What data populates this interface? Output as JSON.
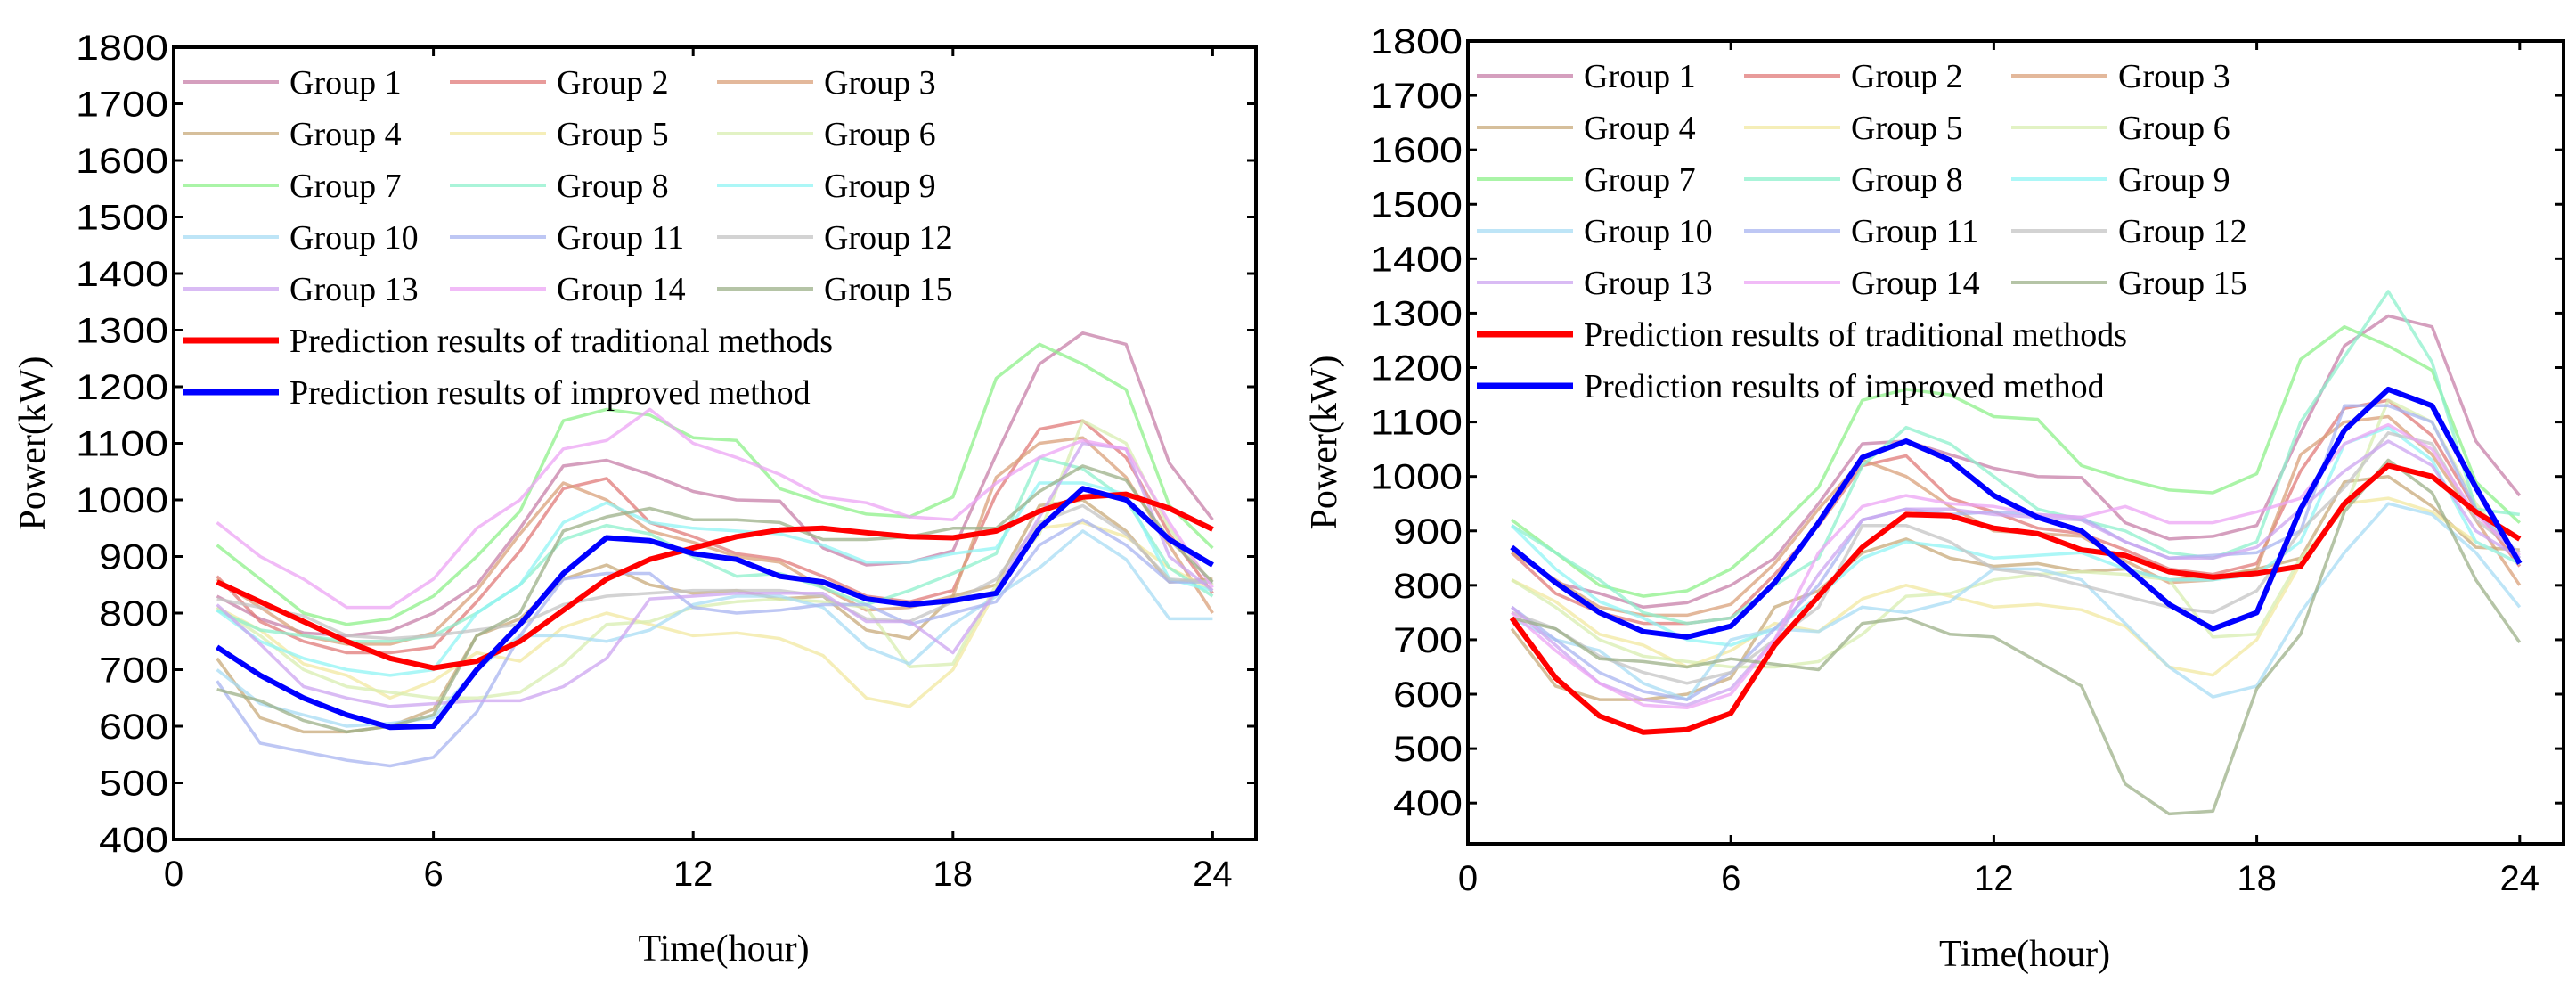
{
  "chart_data": [
    {
      "type": "line",
      "panel": "left",
      "xlabel": "Time(hour)",
      "ylabel": "Power(kW)",
      "xlim": [
        0,
        25
      ],
      "ylim": [
        400,
        1800
      ],
      "xticks": [
        0,
        6,
        12,
        18,
        24
      ],
      "yticks": [
        400,
        500,
        600,
        700,
        800,
        900,
        1000,
        1100,
        1200,
        1300,
        1400,
        1500,
        1600,
        1700,
        1800
      ],
      "grid": false,
      "legend_position": "top-left",
      "x": [
        1,
        2,
        3,
        4,
        5,
        6,
        7,
        8,
        9,
        10,
        11,
        12,
        13,
        14,
        15,
        16,
        17,
        18,
        19,
        20,
        21,
        22,
        23,
        24
      ],
      "series": [
        {
          "name": "Group 1",
          "color": "#c77fa8",
          "values": [
            830,
            790,
            765,
            760,
            768,
            800,
            850,
            950,
            1060,
            1070,
            1045,
            1015,
            1000,
            998,
            915,
            885,
            890,
            910,
            1080,
            1240,
            1295,
            1275,
            1065,
            965
          ]
        },
        {
          "name": "Group 2",
          "color": "#e07a78",
          "values": [
            865,
            785,
            750,
            730,
            730,
            740,
            820,
            910,
            1020,
            1038,
            960,
            935,
            905,
            895,
            865,
            830,
            820,
            840,
            1010,
            1125,
            1140,
            1075,
            940,
            835
          ]
        },
        {
          "name": "Group 3",
          "color": "#d9a07a",
          "values": [
            860,
            810,
            760,
            745,
            745,
            765,
            840,
            940,
            1030,
            1000,
            945,
            925,
            900,
            890,
            845,
            805,
            810,
            830,
            1040,
            1100,
            1110,
            1040,
            920,
            800
          ]
        },
        {
          "name": "Group 4",
          "color": "#c8aa7a",
          "values": [
            720,
            615,
            590,
            590,
            600,
            630,
            760,
            790,
            860,
            885,
            850,
            835,
            840,
            825,
            830,
            770,
            755,
            830,
            850,
            990,
            1000,
            945,
            855,
            860
          ]
        },
        {
          "name": "Group 5",
          "color": "#f2e8a0",
          "values": [
            810,
            770,
            710,
            690,
            650,
            680,
            730,
            715,
            775,
            800,
            780,
            760,
            765,
            755,
            725,
            650,
            635,
            700,
            840,
            950,
            960,
            935,
            880,
            840
          ]
        },
        {
          "name": "Group 6",
          "color": "#d8eeb0",
          "values": [
            810,
            760,
            700,
            670,
            660,
            650,
            650,
            660,
            710,
            780,
            785,
            810,
            820,
            825,
            820,
            810,
            705,
            710,
            850,
            940,
            1140,
            1100,
            950,
            850
          ]
        },
        {
          "name": "Group 7",
          "color": "#8ef08a",
          "values": [
            920,
            860,
            800,
            780,
            790,
            830,
            900,
            980,
            1140,
            1160,
            1150,
            1110,
            1105,
            1020,
            995,
            975,
            970,
            1005,
            1215,
            1275,
            1240,
            1195,
            990,
            915
          ]
        },
        {
          "name": "Group 8",
          "color": "#8ef0cc",
          "values": [
            805,
            770,
            760,
            750,
            750,
            760,
            800,
            850,
            930,
            955,
            940,
            900,
            865,
            870,
            845,
            815,
            840,
            870,
            905,
            1075,
            1055,
            1000,
            880,
            830
          ]
        },
        {
          "name": "Group 9",
          "color": "#90f4f4",
          "values": [
            805,
            750,
            720,
            700,
            690,
            700,
            800,
            850,
            960,
            995,
            960,
            950,
            945,
            940,
            920,
            890,
            890,
            905,
            915,
            1030,
            1030,
            1010,
            860,
            840
          ]
        },
        {
          "name": "Group 10",
          "color": "#a8dcf4",
          "values": [
            700,
            640,
            620,
            600,
            605,
            615,
            700,
            760,
            760,
            750,
            770,
            815,
            830,
            830,
            810,
            740,
            710,
            780,
            830,
            880,
            945,
            895,
            790,
            790
          ]
        },
        {
          "name": "Group 11",
          "color": "#a8b4f0",
          "values": [
            680,
            570,
            555,
            540,
            530,
            545,
            625,
            760,
            860,
            870,
            870,
            810,
            800,
            805,
            815,
            815,
            780,
            800,
            820,
            920,
            965,
            920,
            855,
            855
          ]
        },
        {
          "name": "Group 12",
          "color": "#c4c4c4",
          "values": [
            825,
            810,
            795,
            760,
            755,
            760,
            770,
            780,
            815,
            830,
            835,
            840,
            840,
            840,
            830,
            790,
            785,
            820,
            860,
            960,
            990,
            940,
            860,
            855
          ]
        },
        {
          "name": "Group 13",
          "color": "#cca4f0",
          "values": [
            815,
            745,
            670,
            650,
            635,
            640,
            645,
            645,
            670,
            720,
            825,
            830,
            835,
            835,
            835,
            785,
            785,
            730,
            840,
            970,
            1100,
            1090,
            900,
            840
          ]
        },
        {
          "name": "Group 14",
          "color": "#eca4f4",
          "values": [
            960,
            900,
            860,
            810,
            810,
            860,
            950,
            1000,
            1090,
            1105,
            1160,
            1100,
            1075,
            1045,
            1005,
            995,
            970,
            965,
            1030,
            1075,
            1105,
            1090,
            960,
            845
          ]
        },
        {
          "name": "Group 15",
          "color": "#9cb088",
          "values": [
            665,
            645,
            610,
            590,
            600,
            620,
            760,
            800,
            945,
            970,
            985,
            965,
            965,
            960,
            930,
            930,
            935,
            950,
            950,
            1015,
            1060,
            1035,
            930,
            855
          ]
        },
        {
          "name": "Prediction results of traditional methods",
          "color": "#ff0000",
          "values": [
            855,
            820,
            785,
            750,
            720,
            703,
            715,
            750,
            805,
            860,
            895,
            915,
            935,
            947,
            950,
            942,
            935,
            933,
            945,
            980,
            1005,
            1010,
            985,
            948
          ]
        },
        {
          "name": "Prediction results of improved method",
          "color": "#0000ff",
          "values": [
            740,
            690,
            650,
            620,
            598,
            600,
            700,
            780,
            870,
            933,
            928,
            905,
            895,
            865,
            855,
            825,
            815,
            822,
            835,
            950,
            1020,
            1000,
            930,
            885
          ]
        }
      ]
    },
    {
      "type": "line",
      "panel": "right",
      "xlabel": "Time(hour)",
      "ylabel": "Power(kW)",
      "xlim": [
        0,
        25
      ],
      "ylim": [
        325,
        1800
      ],
      "xticks": [
        0,
        6,
        12,
        18,
        24
      ],
      "yticks": [
        400,
        500,
        600,
        700,
        800,
        900,
        1000,
        1100,
        1200,
        1300,
        1400,
        1500,
        1600,
        1700,
        1800
      ],
      "grid": false,
      "legend_position": "top-left",
      "x": [
        1,
        2,
        3,
        4,
        5,
        6,
        7,
        8,
        9,
        10,
        11,
        12,
        13,
        14,
        15,
        16,
        17,
        18,
        19,
        20,
        21,
        22,
        23,
        24
      ],
      "series": [
        {
          "name": "Group 1",
          "color": "#c77fa8",
          "values": [
            870,
            805,
            785,
            760,
            768,
            800,
            850,
            950,
            1060,
            1065,
            1040,
            1015,
            1000,
            998,
            915,
            885,
            890,
            910,
            1080,
            1240,
            1295,
            1275,
            1065,
            965
          ]
        },
        {
          "name": "Group 2",
          "color": "#e07a78",
          "values": [
            860,
            785,
            750,
            730,
            730,
            740,
            820,
            910,
            1020,
            1038,
            960,
            935,
            905,
            895,
            865,
            830,
            820,
            840,
            1010,
            1125,
            1140,
            1075,
            940,
            835
          ]
        },
        {
          "name": "Group 3",
          "color": "#d9a07a",
          "values": [
            860,
            810,
            760,
            745,
            745,
            765,
            840,
            940,
            1030,
            1000,
            945,
            900,
            895,
            890,
            845,
            805,
            810,
            830,
            1040,
            1100,
            1110,
            1040,
            920,
            800
          ]
        },
        {
          "name": "Group 4",
          "color": "#c8aa7a",
          "values": [
            720,
            615,
            590,
            590,
            600,
            630,
            760,
            790,
            860,
            885,
            850,
            835,
            840,
            825,
            830,
            810,
            815,
            830,
            850,
            990,
            1000,
            945,
            870,
            865
          ]
        },
        {
          "name": "Group 5",
          "color": "#f2e8a0",
          "values": [
            810,
            770,
            710,
            690,
            650,
            680,
            730,
            715,
            775,
            800,
            780,
            760,
            765,
            755,
            725,
            650,
            635,
            700,
            840,
            950,
            960,
            935,
            880,
            840
          ]
        },
        {
          "name": "Group 6",
          "color": "#d8eeb0",
          "values": [
            810,
            760,
            700,
            670,
            660,
            650,
            650,
            660,
            710,
            780,
            785,
            810,
            820,
            825,
            820,
            810,
            705,
            710,
            850,
            940,
            1140,
            1100,
            950,
            850
          ]
        },
        {
          "name": "Group 7",
          "color": "#8ef08a",
          "values": [
            920,
            860,
            800,
            780,
            790,
            830,
            900,
            980,
            1140,
            1160,
            1150,
            1110,
            1105,
            1020,
            995,
            975,
            970,
            1005,
            1215,
            1275,
            1240,
            1195,
            990,
            915
          ]
        },
        {
          "name": "Group 8",
          "color": "#8ef0cc",
          "values": [
            910,
            860,
            810,
            750,
            730,
            740,
            800,
            850,
            1020,
            1090,
            1060,
            1000,
            940,
            920,
            900,
            860,
            850,
            880,
            1100,
            1220,
            1340,
            1210,
            940,
            930
          ]
        },
        {
          "name": "Group 9",
          "color": "#90f4f4",
          "values": [
            910,
            830,
            770,
            740,
            700,
            690,
            720,
            780,
            850,
            880,
            870,
            850,
            855,
            860,
            830,
            810,
            810,
            820,
            880,
            1060,
            1090,
            1030,
            880,
            840
          ]
        },
        {
          "name": "Group 10",
          "color": "#a8dcf4",
          "values": [
            740,
            700,
            680,
            620,
            590,
            700,
            720,
            715,
            760,
            750,
            770,
            830,
            830,
            810,
            730,
            650,
            595,
            615,
            750,
            860,
            950,
            930,
            860,
            760
          ]
        },
        {
          "name": "Group 11",
          "color": "#a8b4f0",
          "values": [
            760,
            700,
            640,
            605,
            590,
            640,
            720,
            800,
            920,
            940,
            930,
            935,
            930,
            925,
            880,
            850,
            855,
            860,
            900,
            1130,
            1130,
            1100,
            940,
            850
          ]
        },
        {
          "name": "Group 12",
          "color": "#c4c4c4",
          "values": [
            750,
            720,
            670,
            640,
            620,
            640,
            700,
            760,
            910,
            910,
            880,
            830,
            820,
            800,
            780,
            760,
            750,
            790,
            900,
            980,
            1080,
            1060,
            920,
            860
          ]
        },
        {
          "name": "Group 13",
          "color": "#cca4f0",
          "values": [
            760,
            690,
            620,
            590,
            580,
            610,
            700,
            820,
            920,
            940,
            940,
            930,
            925,
            920,
            880,
            850,
            850,
            870,
            940,
            1010,
            1065,
            1020,
            900,
            850
          ]
        },
        {
          "name": "Group 14",
          "color": "#eca4f4",
          "values": [
            750,
            680,
            620,
            580,
            575,
            600,
            700,
            860,
            945,
            965,
            950,
            945,
            930,
            925,
            945,
            915,
            915,
            935,
            960,
            1060,
            1095,
            1050,
            930,
            855
          ]
        },
        {
          "name": "Group 15",
          "color": "#9cb088",
          "values": [
            740,
            720,
            665,
            660,
            650,
            665,
            655,
            645,
            730,
            740,
            710,
            705,
            660,
            615,
            435,
            380,
            385,
            610,
            710,
            935,
            1030,
            970,
            810,
            695
          ]
        },
        {
          "name": "Prediction results of traditional methods",
          "color": "#ff0000",
          "values": [
            740,
            630,
            560,
            530,
            535,
            565,
            690,
            780,
            870,
            930,
            928,
            905,
            895,
            865,
            855,
            825,
            815,
            822,
            835,
            950,
            1020,
            1000,
            935,
            885
          ]
        },
        {
          "name": "Prediction results of improved method",
          "color": "#0000ff",
          "values": [
            870,
            805,
            750,
            715,
            705,
            725,
            805,
            915,
            1035,
            1065,
            1030,
            965,
            925,
            900,
            835,
            765,
            720,
            750,
            940,
            1085,
            1160,
            1130,
            980,
            840
          ]
        }
      ]
    }
  ]
}
